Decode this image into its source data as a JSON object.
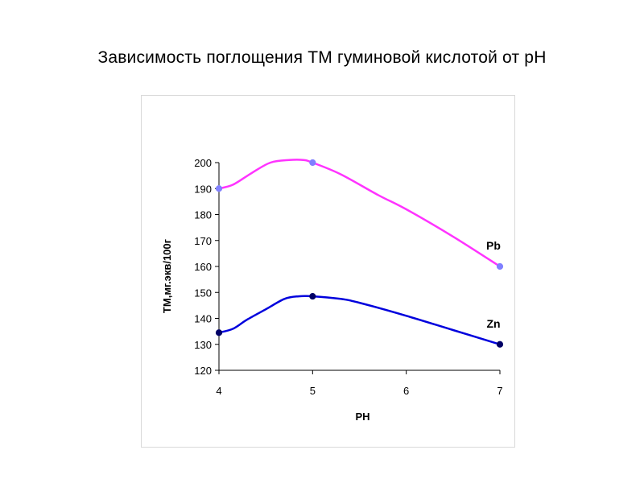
{
  "title": "Зависимость поглощения ТМ гуминовой кислотой от pH",
  "chart_data": {
    "type": "line",
    "xlabel": "PH",
    "ylabel": "ТМ,мг.экв/100г",
    "xlim": [
      4,
      7
    ],
    "ylim": [
      120,
      200
    ],
    "xticks": [
      4,
      5,
      6,
      7
    ],
    "yticks": [
      120,
      130,
      140,
      150,
      160,
      170,
      180,
      190,
      200
    ],
    "grid": false,
    "series": [
      {
        "name": "Pb",
        "color": "#ff33ff",
        "marker_color": "#8080ff",
        "points": [
          [
            4,
            190
          ],
          [
            5,
            200
          ],
          [
            7,
            160
          ]
        ],
        "curve": [
          [
            4,
            190
          ],
          [
            4.15,
            191.5
          ],
          [
            4.35,
            196
          ],
          [
            4.55,
            200
          ],
          [
            4.75,
            201
          ],
          [
            4.9,
            201
          ],
          [
            5,
            200
          ],
          [
            5.3,
            195.5
          ],
          [
            5.7,
            187.5
          ],
          [
            6,
            182
          ],
          [
            6.5,
            171.5
          ],
          [
            7,
            160
          ]
        ]
      },
      {
        "name": "Zn",
        "color": "#0000dd",
        "marker_color": "#000066",
        "points": [
          [
            4,
            134.5
          ],
          [
            5,
            148.5
          ],
          [
            7,
            130
          ]
        ],
        "curve": [
          [
            4,
            134.5
          ],
          [
            4.15,
            136
          ],
          [
            4.3,
            139.5
          ],
          [
            4.5,
            143.5
          ],
          [
            4.7,
            147.5
          ],
          [
            4.85,
            148.5
          ],
          [
            5,
            148.5
          ],
          [
            5.3,
            147.5
          ],
          [
            5.5,
            146
          ],
          [
            6,
            141
          ],
          [
            6.5,
            135.5
          ],
          [
            7,
            130
          ]
        ]
      }
    ]
  }
}
